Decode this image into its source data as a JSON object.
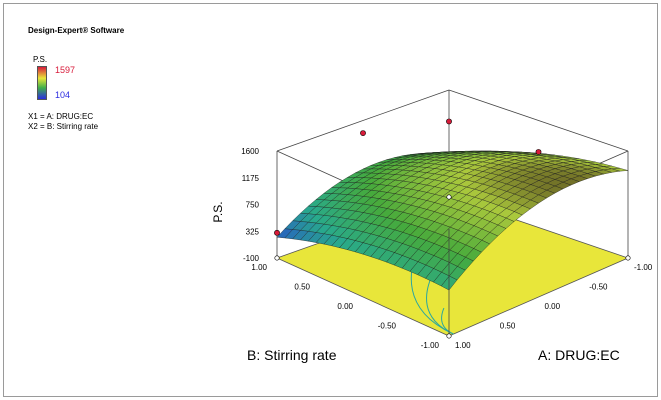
{
  "header": {
    "software": "Design-Expert® Software",
    "response_label": "P.S.",
    "high_value": "1597",
    "low_value": "104",
    "factor1": "X1 = A: DRUG:EC",
    "factor2": "X2 = B: Stirring rate"
  },
  "colors": {
    "high": "#d81b3a",
    "low": "#2c2ce0",
    "contour_base": "#e8e63a",
    "contour_lines": "#2aa6a0"
  },
  "chart_data": {
    "type": "surface",
    "zlabel": "P.S.",
    "xlabel": "A: DRUG:EC",
    "ylabel": "B: Stirring rate",
    "z_ticks": [
      "1600",
      "1175",
      "750",
      "325",
      "-100"
    ],
    "x_ticks": [
      "-1.00",
      "-0.50",
      "0.00",
      "0.50",
      "1.00"
    ],
    "y_ticks": [
      "-1.00",
      "-0.50",
      "0.00",
      "0.50",
      "1.00"
    ],
    "zlim": [
      -100,
      1600
    ],
    "xlim": [
      -1,
      1
    ],
    "ylim": [
      -1,
      1
    ],
    "response_range": [
      104,
      1597
    ],
    "corner_values": [
      {
        "A": 1,
        "B": 1,
        "PS": 300
      },
      {
        "A": -1,
        "B": 1,
        "PS": 1100
      },
      {
        "A": -1,
        "B": -1,
        "PS": 400
      },
      {
        "A": 1,
        "B": -1,
        "PS": 300
      }
    ],
    "design_points": [
      {
        "A": -1,
        "B": 1,
        "PS": 1100
      },
      {
        "A": 0,
        "B": 1,
        "PS": 1400
      },
      {
        "A": -1,
        "B": 0,
        "PS": 1100
      },
      {
        "A": 1,
        "B": 1,
        "PS": 300
      }
    ]
  }
}
